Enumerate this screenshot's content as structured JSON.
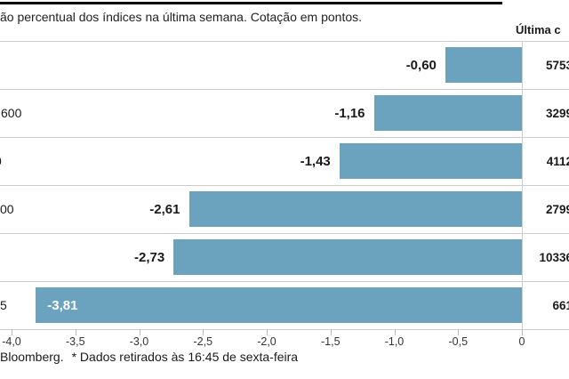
{
  "title": "ão percentual dos índices na última semana. Cotação em pontos.",
  "right_column_header": "Última c",
  "footer": {
    "source": "Bloomberg.",
    "note": "* Dados retirados às 16:45 de sexta-feira"
  },
  "colors": {
    "bar": "#6ba2bd",
    "grid_line": "#cccccc",
    "top_rule": "#000000",
    "text": "#1a1a1a",
    "inside_bar_label": "#ffffff"
  },
  "chart_data": {
    "type": "bar",
    "orientation": "horizontal",
    "title": "ão percentual dos índices na última semana. Cotação em pontos.",
    "xlim": [
      -4.0,
      0
    ],
    "grid": false,
    "x_tick_values": [
      -4.0,
      -3.5,
      -3.0,
      -2.5,
      -2.0,
      -1.5,
      -1.0,
      -0.5,
      0
    ],
    "x_tick_labels": [
      "-4,0",
      "-3,5",
      "-3,0",
      "-2,5",
      "-2,0",
      "-1,5",
      "-1,0",
      "-0,5",
      "0"
    ],
    "rows": [
      {
        "label_visible": "",
        "value": -0.6,
        "value_label": "-0,60",
        "last_quote_display": "5753"
      },
      {
        "label_visible": "600",
        "value": -1.16,
        "value_label": "-1,16",
        "last_quote_display": "3299"
      },
      {
        "label_visible": "0",
        "value": -1.43,
        "value_label": "-1,43",
        "last_quote_display": "4112"
      },
      {
        "label_visible": "00",
        "value": -2.61,
        "value_label": "-2,61",
        "last_quote_display": "2799"
      },
      {
        "label_visible": "",
        "value": -2.73,
        "value_label": "-2,73",
        "last_quote_display": "10336"
      },
      {
        "label_visible": "5",
        "value": -3.81,
        "value_label": "-3,81",
        "last_quote_display": "661"
      }
    ]
  }
}
